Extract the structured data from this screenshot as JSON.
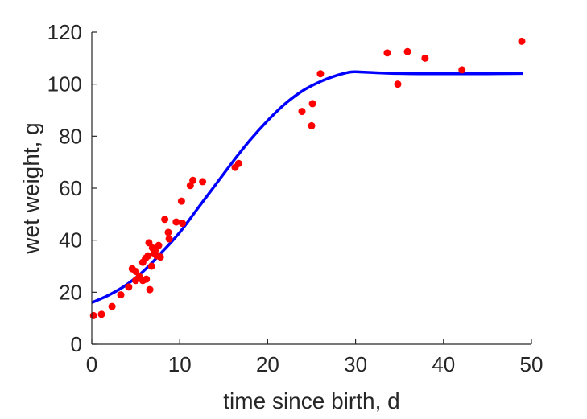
{
  "chart_data": {
    "type": "scatter",
    "title": "",
    "xlabel": "time since birth, d",
    "ylabel": "wet weight, g",
    "xlim": [
      0,
      50
    ],
    "ylim": [
      0,
      120
    ],
    "xticks": [
      0,
      10,
      20,
      30,
      40,
      50
    ],
    "yticks": [
      0,
      20,
      40,
      60,
      80,
      100,
      120
    ],
    "grid": false,
    "legend": "none",
    "series": [
      {
        "kind": "scatter",
        "color": "#ff0000",
        "points": [
          [
            0.2,
            11
          ],
          [
            1.1,
            11.5
          ],
          [
            2.3,
            14.5
          ],
          [
            3.3,
            19
          ],
          [
            4.2,
            22
          ],
          [
            4.6,
            29
          ],
          [
            5.0,
            28
          ],
          [
            5.0,
            24.5
          ],
          [
            5.4,
            26
          ],
          [
            5.8,
            24.5
          ],
          [
            5.8,
            31.5
          ],
          [
            6.1,
            33
          ],
          [
            6.2,
            25
          ],
          [
            6.4,
            34
          ],
          [
            6.5,
            39
          ],
          [
            6.6,
            21
          ],
          [
            6.8,
            30
          ],
          [
            6.9,
            37
          ],
          [
            7.1,
            35
          ],
          [
            7.2,
            36
          ],
          [
            7.4,
            34
          ],
          [
            7.6,
            38
          ],
          [
            7.8,
            33.5
          ],
          [
            8.3,
            48
          ],
          [
            8.7,
            43
          ],
          [
            8.8,
            40.5
          ],
          [
            9.6,
            47
          ],
          [
            10.2,
            55
          ],
          [
            10.3,
            46.5
          ],
          [
            11.2,
            61
          ],
          [
            11.5,
            63
          ],
          [
            12.6,
            62.5
          ],
          [
            16.3,
            68
          ],
          [
            16.7,
            69.5
          ],
          [
            23.9,
            89.5
          ],
          [
            25.0,
            84
          ],
          [
            25.1,
            92.5
          ],
          [
            26.0,
            104
          ],
          [
            33.6,
            112
          ],
          [
            34.8,
            100
          ],
          [
            35.9,
            112.5
          ],
          [
            37.9,
            110
          ],
          [
            42.1,
            105.5
          ],
          [
            48.9,
            116.5
          ]
        ]
      },
      {
        "kind": "line",
        "color": "#0000ff",
        "points": [
          [
            0,
            16
          ],
          [
            2,
            19
          ],
          [
            4,
            23
          ],
          [
            6,
            28.5
          ],
          [
            8,
            35.5
          ],
          [
            10,
            43
          ],
          [
            12,
            52
          ],
          [
            14,
            61
          ],
          [
            16,
            70
          ],
          [
            18,
            78.5
          ],
          [
            20,
            86
          ],
          [
            22,
            92.5
          ],
          [
            24,
            97.5
          ],
          [
            26,
            101
          ],
          [
            28,
            103.5
          ],
          [
            29.5,
            104.7
          ],
          [
            31,
            104.6
          ],
          [
            35,
            104.1
          ],
          [
            40,
            104
          ],
          [
            45,
            104
          ],
          [
            49,
            104.1
          ]
        ]
      }
    ]
  }
}
